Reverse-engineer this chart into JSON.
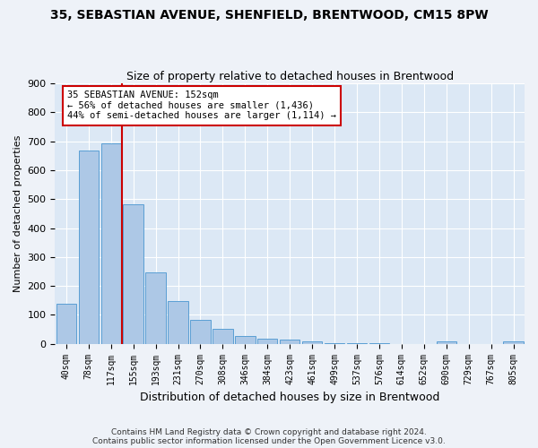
{
  "title": "35, SEBASTIAN AVENUE, SHENFIELD, BRENTWOOD, CM15 8PW",
  "subtitle": "Size of property relative to detached houses in Brentwood",
  "xlabel": "Distribution of detached houses by size in Brentwood",
  "ylabel": "Number of detached properties",
  "bar_color": "#adc8e6",
  "bar_edge_color": "#5a9fd4",
  "background_color": "#dce8f5",
  "grid_color": "#ffffff",
  "categories": [
    "40sqm",
    "78sqm",
    "117sqm",
    "155sqm",
    "193sqm",
    "231sqm",
    "270sqm",
    "308sqm",
    "346sqm",
    "384sqm",
    "423sqm",
    "461sqm",
    "499sqm",
    "537sqm",
    "576sqm",
    "614sqm",
    "652sqm",
    "690sqm",
    "729sqm",
    "767sqm",
    "805sqm"
  ],
  "values": [
    137,
    667,
    693,
    483,
    246,
    148,
    84,
    52,
    27,
    18,
    13,
    7,
    3,
    2,
    1,
    0,
    0,
    8,
    0,
    0,
    8
  ],
  "ylim": [
    0,
    900
  ],
  "yticks": [
    0,
    100,
    200,
    300,
    400,
    500,
    600,
    700,
    800,
    900
  ],
  "red_line_x": 2.5,
  "annotation_line1": "35 SEBASTIAN AVENUE: 152sqm",
  "annotation_line2": "← 56% of detached houses are smaller (1,436)",
  "annotation_line3": "44% of semi-detached houses are larger (1,114) →",
  "annotation_box_color": "#cc0000",
  "footer_line1": "Contains HM Land Registry data © Crown copyright and database right 2024.",
  "footer_line2": "Contains public sector information licensed under the Open Government Licence v3.0."
}
